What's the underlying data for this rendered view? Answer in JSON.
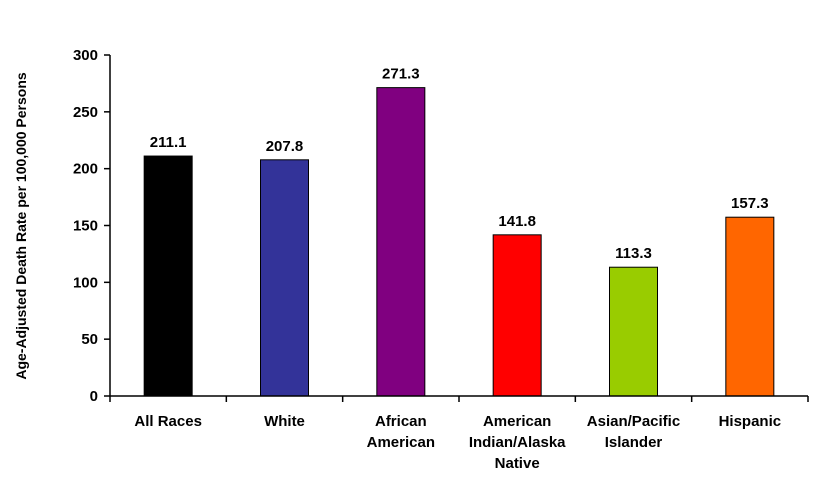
{
  "chart_data": {
    "type": "bar",
    "title": "",
    "xlabel": "",
    "ylabel": "Age-Adjusted Death Rate per 100,000 Persons",
    "ylim": [
      0,
      300
    ],
    "yticks": [
      0,
      50,
      100,
      150,
      200,
      250,
      300
    ],
    "grid": false,
    "legend": "none",
    "categories": [
      [
        "All Races"
      ],
      [
        "White"
      ],
      [
        "African",
        "American"
      ],
      [
        "American",
        "Indian/Alaska",
        "Native"
      ],
      [
        "Asian/Pacific",
        "Islander"
      ],
      [
        "Hispanic"
      ]
    ],
    "values": [
      211.1,
      207.8,
      271.3,
      141.8,
      113.3,
      157.3
    ],
    "value_labels": [
      "211.1",
      "207.8",
      "271.3",
      "141.8",
      "113.3",
      "157.3"
    ],
    "colors": [
      "#000000",
      "#333399",
      "#800080",
      "#ff0000",
      "#99cc00",
      "#ff6600"
    ]
  }
}
